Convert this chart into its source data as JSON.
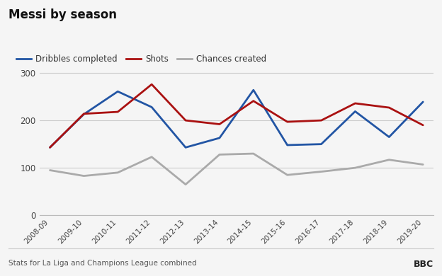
{
  "title": "Messi by season",
  "seasons": [
    "2008-09",
    "2009-10",
    "2010-11",
    "2011-12",
    "2012-13",
    "2013-14",
    "2014-15",
    "2015-16",
    "2016-17",
    "2017-18",
    "2018-19",
    "2019-20"
  ],
  "dribbles": [
    143,
    213,
    261,
    228,
    143,
    163,
    264,
    148,
    150,
    219,
    165,
    239
  ],
  "shots": [
    143,
    214,
    218,
    276,
    200,
    192,
    241,
    197,
    200,
    236,
    227,
    190
  ],
  "chances": [
    95,
    83,
    90,
    123,
    65,
    128,
    130,
    85,
    92,
    100,
    117,
    107
  ],
  "line_colors": {
    "dribbles": "#2255a4",
    "shots": "#aa1111",
    "chances": "#aaaaaa"
  },
  "legend_labels": [
    "Dribbles completed",
    "Shots",
    "Chances created"
  ],
  "ylim": [
    0,
    320
  ],
  "yticks": [
    0,
    100,
    200,
    300
  ],
  "footer_left": "Stats for La Liga and Champions League combined",
  "footer_right": "BBC",
  "background_color": "#f5f5f5",
  "grid_color": "#cccccc",
  "line_width": 2.0
}
